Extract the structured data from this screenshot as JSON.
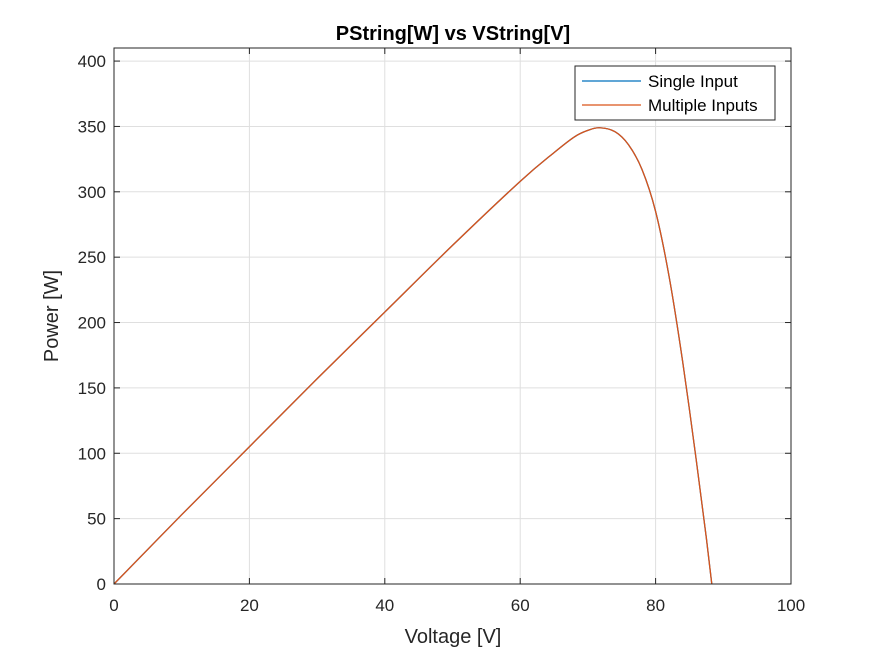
{
  "chart_data": {
    "type": "line",
    "title": "PString[W] vs VString[V]",
    "xlabel": "Voltage [V]",
    "ylabel": "Power [W]",
    "xlim": [
      0,
      100
    ],
    "ylim": [
      0,
      410
    ],
    "xticks": [
      0,
      20,
      40,
      60,
      80,
      100
    ],
    "yticks": [
      0,
      50,
      100,
      150,
      200,
      250,
      300,
      350,
      400
    ],
    "xtick_labels": [
      "0",
      "20",
      "40",
      "60",
      "80",
      "100"
    ],
    "ytick_labels": [
      "0",
      "50",
      "100",
      "150",
      "200",
      "250",
      "300",
      "350",
      "400"
    ],
    "grid": true,
    "legend_position": "top-right",
    "series": [
      {
        "name": "Single Input",
        "color": "#0072BD",
        "x": [
          0,
          10,
          20,
          30,
          40,
          50,
          60,
          65,
          68,
          70,
          71.7,
          74,
          76,
          78,
          80,
          82,
          84,
          86,
          87.5,
          88.3
        ],
        "y": [
          0,
          53,
          105,
          157,
          208,
          259,
          308,
          330,
          342,
          347,
          349,
          346,
          336,
          317,
          285,
          235,
          170,
          95,
          35,
          0
        ]
      },
      {
        "name": "Multiple Inputs",
        "color": "#D95319",
        "x": [
          0,
          10,
          20,
          30,
          40,
          50,
          60,
          65,
          68,
          70,
          71.7,
          74,
          76,
          78,
          80,
          82,
          84,
          86,
          87.5,
          88.3
        ],
        "y": [
          0,
          53,
          105,
          157,
          208,
          259,
          308,
          330,
          342,
          347,
          349,
          346,
          336,
          317,
          285,
          235,
          170,
          95,
          35,
          0
        ]
      }
    ]
  }
}
